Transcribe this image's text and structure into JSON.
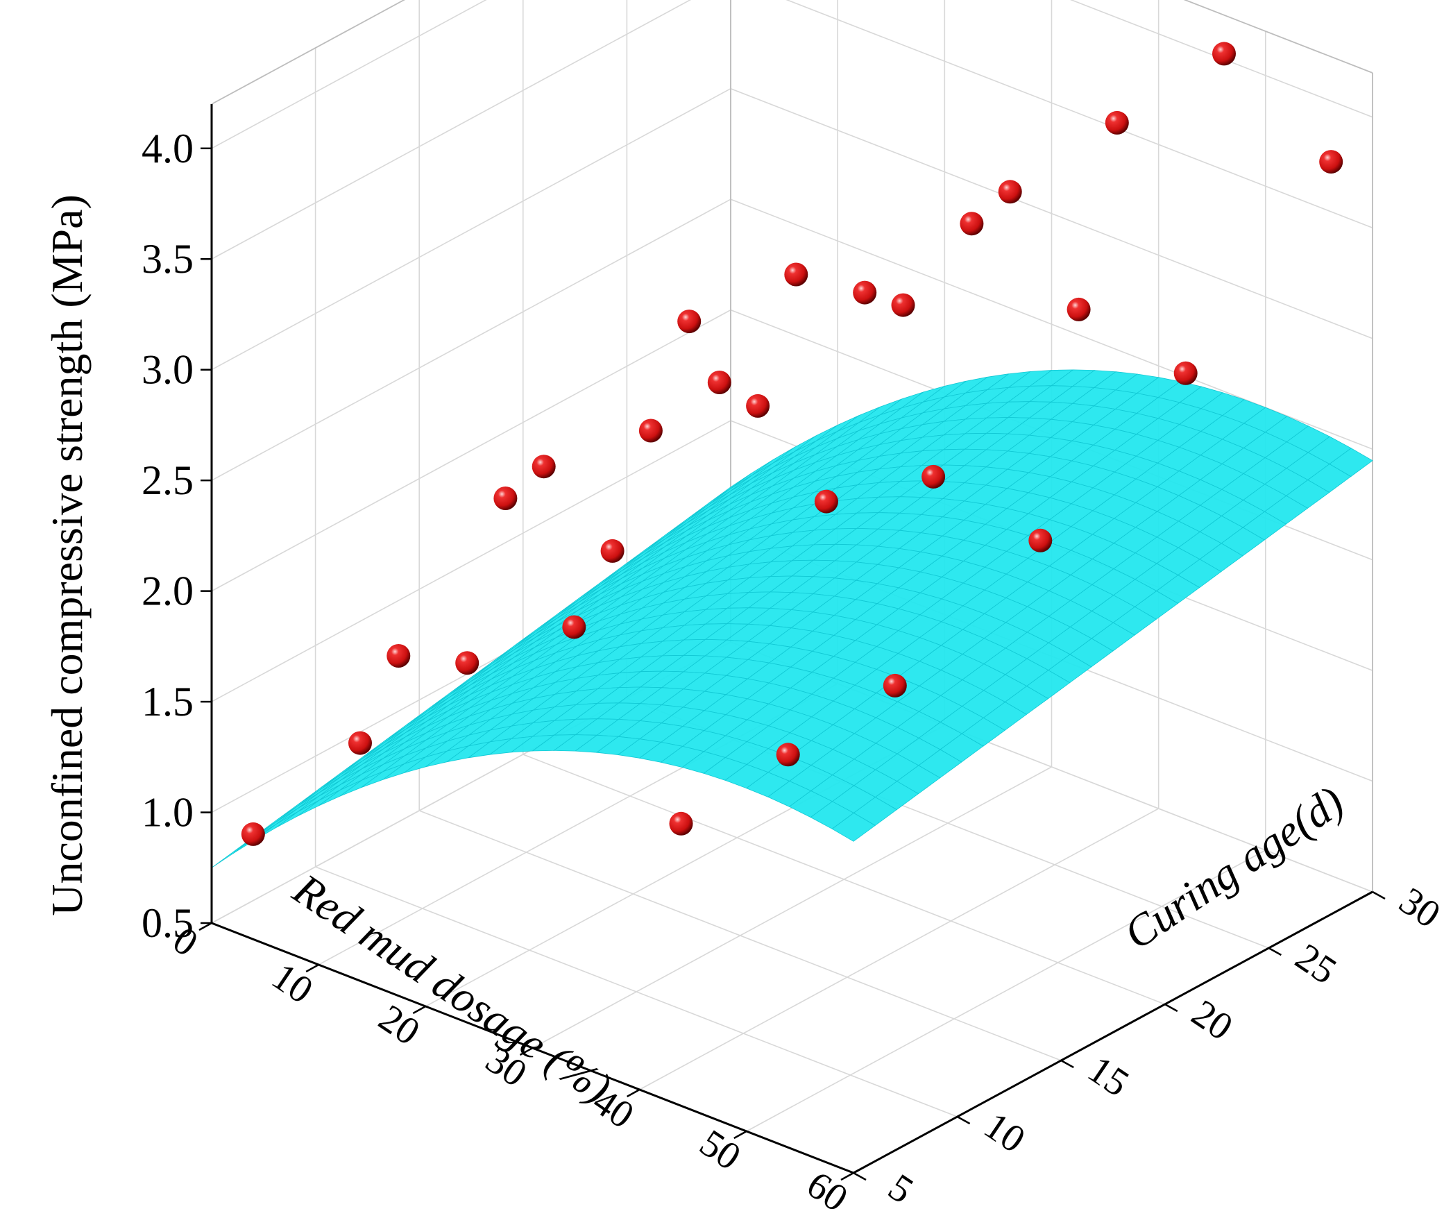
{
  "chart_data": {
    "type": "scatter",
    "title": "",
    "zlabel": "Unconfined compressive strength (MPa)",
    "xlabel": "Red mud dosage (%)",
    "ylabel_prefix": "Curing age(",
    "ylabel_var": "d",
    "ylabel_suffix": ")",
    "xlim": [
      0,
      60
    ],
    "ylim": [
      5,
      30
    ],
    "zlim": [
      0.5,
      4.2
    ],
    "x_ticks": [
      "0",
      "10",
      "20",
      "30",
      "40",
      "50",
      "60"
    ],
    "y_ticks": [
      "5",
      "10",
      "15",
      "20",
      "25",
      "30"
    ],
    "z_ticks": [
      "0.5",
      "1.0",
      "1.5",
      "2.0",
      "2.5",
      "3.0",
      "3.5",
      "4.0"
    ],
    "grid": true,
    "point_color": "#cc1010",
    "surface_color": "#1ee6ee",
    "series": [
      {
        "type": "scatter3d",
        "points": [
          {
            "x": 0,
            "y": 7,
            "z": 0.8
          },
          {
            "x": 0,
            "y": 14,
            "z": 1.25
          },
          {
            "x": 0,
            "y": 21,
            "z": 1.75
          },
          {
            "x": 0,
            "y": 28,
            "z": 2.05
          },
          {
            "x": 10,
            "y": 7,
            "z": 1.4
          },
          {
            "x": 10,
            "y": 14,
            "z": 2.15
          },
          {
            "x": 10,
            "y": 21,
            "z": 2.1
          },
          {
            "x": 10,
            "y": 28,
            "z": 2.45
          },
          {
            "x": 20,
            "y": 7,
            "z": 1.95
          },
          {
            "x": 20,
            "y": 14,
            "z": 2.1
          },
          {
            "x": 20,
            "y": 21,
            "z": 2.4
          },
          {
            "x": 20,
            "y": 28,
            "z": 2.5
          },
          {
            "x": 30,
            "y": 7,
            "z": 2.3
          },
          {
            "x": 30,
            "y": 14,
            "z": 3.05
          },
          {
            "x": 30,
            "y": 21,
            "z": 3.1
          },
          {
            "x": 30,
            "y": 28,
            "z": 3.2
          },
          {
            "x": 40,
            "y": 7,
            "z": 1.6
          },
          {
            "x": 40,
            "y": 14,
            "z": 2.7
          },
          {
            "x": 40,
            "y": 21,
            "z": 3.6
          },
          {
            "x": 40,
            "y": 28,
            "z": 3.7
          },
          {
            "x": 50,
            "y": 7,
            "z": 2.1
          },
          {
            "x": 50,
            "y": 14,
            "z": 3.0
          },
          {
            "x": 50,
            "y": 21,
            "z": 3.4
          },
          {
            "x": 50,
            "y": 28,
            "z": 4.2
          },
          {
            "x": 60,
            "y": 7,
            "z": 2.6
          },
          {
            "x": 60,
            "y": 14,
            "z": 2.9
          },
          {
            "x": 60,
            "y": 21,
            "z": 3.3
          },
          {
            "x": 60,
            "y": 28,
            "z": 3.9
          }
        ]
      }
    ]
  }
}
